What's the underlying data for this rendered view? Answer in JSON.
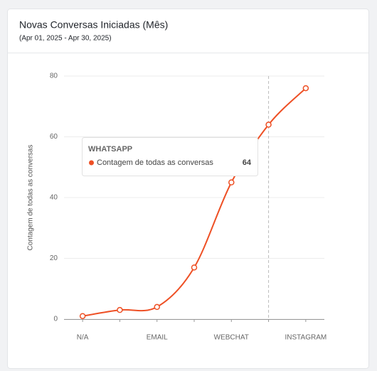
{
  "chart_data": {
    "type": "line",
    "title": "Novas Conversas Iniciadas (Mês)",
    "subtitle": "(Apr 01, 2025 - Apr 30, 2025)",
    "y_label": "Contagem de todas as conversas",
    "categories": [
      "N/A",
      null,
      "EMAIL",
      null,
      "WEBCHAT",
      "WHATSAPP",
      "INSTAGRAM"
    ],
    "series": [
      {
        "name": "Contagem de todas as conversas",
        "color": "#ee5025",
        "values": [
          1,
          3,
          4,
          17,
          45,
          64,
          76
        ]
      }
    ],
    "ylim": [
      0,
      80
    ],
    "yticks": [
      0,
      20,
      40,
      60,
      80
    ],
    "grid": true,
    "tooltip": {
      "index": 5
    }
  }
}
